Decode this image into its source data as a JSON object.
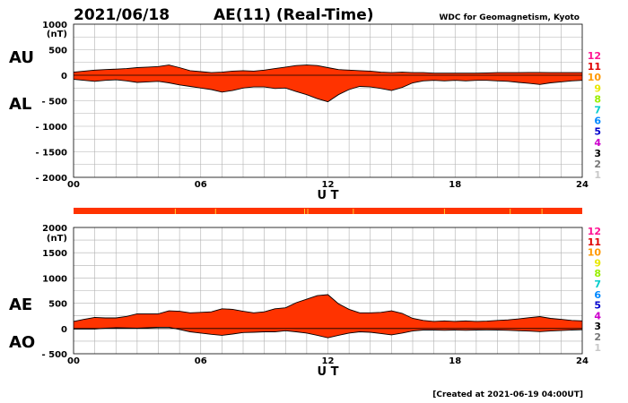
{
  "header": {
    "date": "2021/06/18",
    "title": "AE(11) (Real-Time)",
    "source": "WDC for Geomagnetism, Kyoto"
  },
  "footer": {
    "created": "[Created at 2021-06-19 04:00UT]"
  },
  "legend": {
    "entries": [
      {
        "label": "12",
        "color": "#ff1493"
      },
      {
        "label": "11",
        "color": "#e00000"
      },
      {
        "label": "10",
        "color": "#ff9900"
      },
      {
        "label": "9",
        "color": "#e8e800"
      },
      {
        "label": "8",
        "color": "#99ee00"
      },
      {
        "label": "7",
        "color": "#00cccc"
      },
      {
        "label": "6",
        "color": "#0088ff"
      },
      {
        "label": "5",
        "color": "#0000cc"
      },
      {
        "label": "4",
        "color": "#cc00cc"
      },
      {
        "label": "3",
        "color": "#000000"
      },
      {
        "label": "2",
        "color": "#777777"
      },
      {
        "label": "1",
        "color": "#c8c8c8"
      }
    ]
  },
  "colors": {
    "fill": "#ff3300",
    "highlight": "#ffcc33"
  },
  "chart_data": [
    {
      "type": "area",
      "name": "AU/AL",
      "upper_label": "AU",
      "lower_label": "AL",
      "unit": "(nT)",
      "xlabel": "U T",
      "xticks": [
        "00",
        "06",
        "12",
        "18",
        "24"
      ],
      "yticks": [
        "1000",
        "500",
        "0",
        "- 500",
        "- 1000",
        "- 1500",
        "- 2000"
      ],
      "xlim": [
        0,
        24
      ],
      "ylim": [
        -2000,
        1000
      ],
      "grid": true,
      "x": [
        0,
        0.5,
        1,
        1.5,
        2,
        2.5,
        3,
        3.5,
        4,
        4.5,
        5,
        5.5,
        6,
        6.5,
        7,
        7.5,
        8,
        8.5,
        9,
        9.5,
        10,
        10.5,
        11,
        11.5,
        12,
        12.5,
        13,
        13.5,
        14,
        14.5,
        15,
        15.5,
        16,
        16.5,
        17,
        17.5,
        18,
        18.5,
        19,
        19.5,
        20,
        20.5,
        21,
        21.5,
        22,
        22.5,
        23,
        23.5,
        24
      ],
      "series": [
        {
          "name": "AU",
          "values": [
            60,
            80,
            100,
            110,
            120,
            130,
            150,
            160,
            170,
            200,
            150,
            90,
            70,
            50,
            60,
            80,
            90,
            80,
            100,
            130,
            160,
            190,
            200,
            190,
            150,
            110,
            100,
            90,
            80,
            60,
            50,
            60,
            50,
            50,
            40,
            40,
            40,
            40,
            40,
            45,
            50,
            50,
            50,
            55,
            55,
            50,
            50,
            50,
            50
          ]
        },
        {
          "name": "AL",
          "values": [
            -80,
            -100,
            -120,
            -100,
            -90,
            -110,
            -140,
            -130,
            -120,
            -150,
            -190,
            -220,
            -250,
            -280,
            -330,
            -300,
            -250,
            -230,
            -230,
            -260,
            -250,
            -320,
            -380,
            -460,
            -520,
            -380,
            -280,
            -220,
            -230,
            -260,
            -300,
            -240,
            -150,
            -110,
            -100,
            -110,
            -100,
            -110,
            -100,
            -100,
            -110,
            -120,
            -140,
            -160,
            -180,
            -150,
            -130,
            -110,
            -100
          ]
        }
      ]
    },
    {
      "type": "area",
      "name": "AE/AO",
      "upper_label": "AE",
      "lower_label": "AO",
      "unit": "(nT)",
      "xlabel": "U T",
      "xticks": [
        "00",
        "06",
        "12",
        "18",
        "24"
      ],
      "yticks": [
        "2000",
        "1500",
        "1000",
        "500",
        "0",
        "- 500"
      ],
      "xlim": [
        0,
        24
      ],
      "ylim": [
        -500,
        2000
      ],
      "grid": true,
      "x": [
        0,
        0.5,
        1,
        1.5,
        2,
        2.5,
        3,
        3.5,
        4,
        4.5,
        5,
        5.5,
        6,
        6.5,
        7,
        7.5,
        8,
        8.5,
        9,
        9.5,
        10,
        10.5,
        11,
        11.5,
        12,
        12.5,
        13,
        13.5,
        14,
        14.5,
        15,
        15.5,
        16,
        16.5,
        17,
        17.5,
        18,
        18.5,
        19,
        19.5,
        20,
        20.5,
        21,
        21.5,
        22,
        22.5,
        23,
        23.5,
        24
      ],
      "series": [
        {
          "name": "AE",
          "values": [
            140,
            180,
            220,
            210,
            210,
            240,
            290,
            290,
            290,
            350,
            340,
            310,
            320,
            330,
            390,
            380,
            340,
            310,
            330,
            390,
            410,
            510,
            580,
            650,
            670,
            490,
            380,
            310,
            310,
            320,
            350,
            300,
            200,
            160,
            140,
            150,
            140,
            150,
            140,
            145,
            160,
            170,
            190,
            215,
            235,
            200,
            180,
            160,
            150
          ]
        },
        {
          "name": "AO",
          "values": [
            -10,
            -10,
            -10,
            5,
            15,
            10,
            5,
            15,
            25,
            25,
            -20,
            -65,
            -90,
            -115,
            -135,
            -110,
            -80,
            -75,
            -65,
            -65,
            -45,
            -65,
            -90,
            -135,
            -185,
            -135,
            -90,
            -65,
            -75,
            -100,
            -125,
            -90,
            -50,
            -30,
            -30,
            -35,
            -30,
            -35,
            -30,
            -28,
            -30,
            -35,
            -45,
            -52,
            -62,
            -50,
            -40,
            -30,
            -25
          ]
        }
      ]
    }
  ]
}
